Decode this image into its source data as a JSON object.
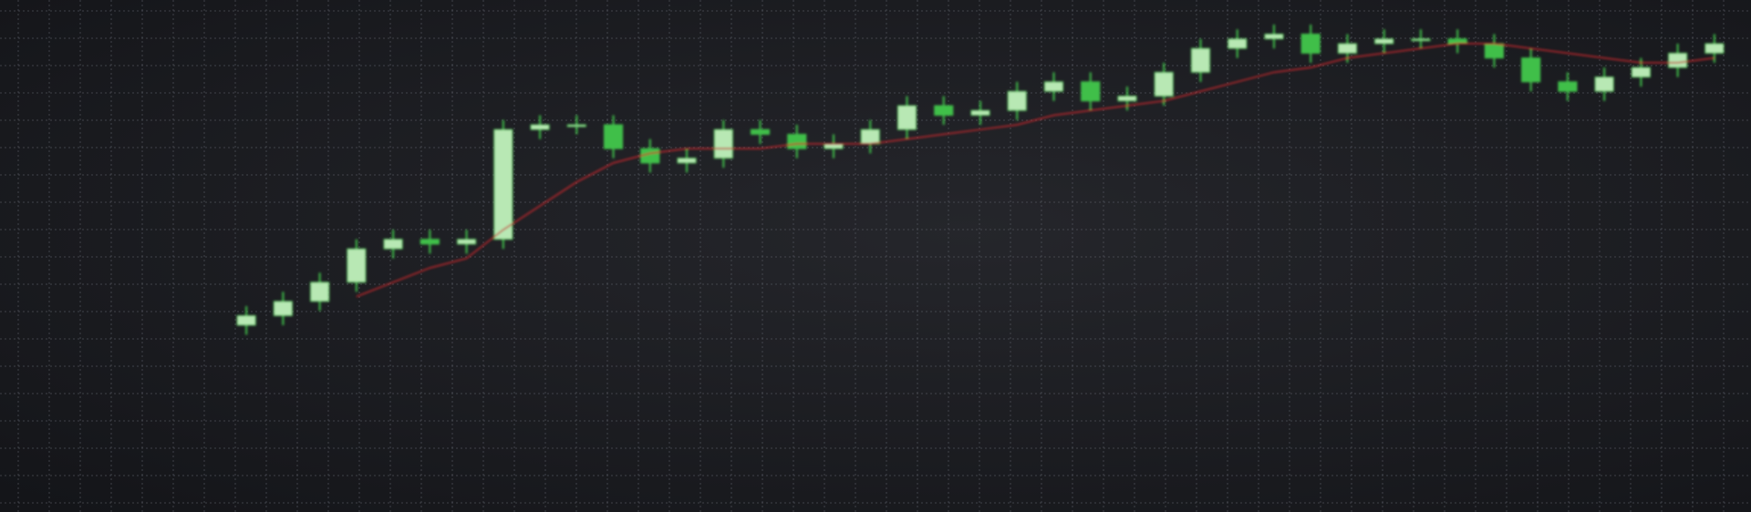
{
  "chart_data": {
    "type": "candlestick",
    "open": [
      38,
      40,
      43,
      47,
      54,
      56,
      55,
      56,
      79,
      80,
      80,
      75,
      72,
      73,
      79,
      78,
      75,
      76,
      79,
      84,
      82,
      83,
      87,
      89,
      85,
      86,
      91,
      96,
      98,
      99,
      95,
      97,
      98,
      98,
      97,
      94,
      89,
      87,
      90,
      92,
      95
    ],
    "high": [
      42,
      45,
      49,
      56,
      58,
      58,
      58,
      81,
      82,
      82,
      82,
      77,
      75,
      81,
      81,
      80,
      78,
      81,
      86,
      86,
      85,
      89,
      91,
      91,
      88,
      93,
      98,
      100,
      101,
      101,
      99,
      100,
      100,
      100,
      99,
      96,
      91,
      92,
      94,
      97,
      99
    ],
    "low": [
      36,
      38,
      41,
      45,
      52,
      53,
      53,
      54,
      77,
      78,
      73,
      70,
      70,
      71,
      76,
      73,
      73,
      74,
      77,
      80,
      80,
      81,
      85,
      83,
      83,
      84,
      89,
      94,
      96,
      93,
      93,
      95,
      96,
      95,
      92,
      87,
      85,
      85,
      88,
      90,
      93
    ],
    "close": [
      40,
      43,
      47,
      54,
      56,
      55,
      56,
      79,
      80,
      80,
      75,
      72,
      73,
      79,
      78,
      75,
      76,
      79,
      84,
      82,
      83,
      87,
      89,
      85,
      86,
      91,
      96,
      98,
      99,
      95,
      97,
      98,
      98,
      97,
      94,
      89,
      87,
      90,
      92,
      95,
      97
    ],
    "color": "#3fbf4a",
    "moving_average": {
      "color": "#c0262c",
      "values": [
        null,
        null,
        null,
        44,
        47,
        50,
        52,
        58,
        63,
        68,
        72,
        74,
        75,
        75,
        75,
        76,
        76,
        76,
        77,
        78,
        79,
        80,
        82,
        83,
        84,
        85,
        87,
        89,
        91,
        92,
        94,
        95,
        96,
        97,
        97,
        96,
        95,
        94,
        93,
        93,
        94
      ]
    },
    "ylim": [
      0,
      105
    ],
    "grid": true
  }
}
